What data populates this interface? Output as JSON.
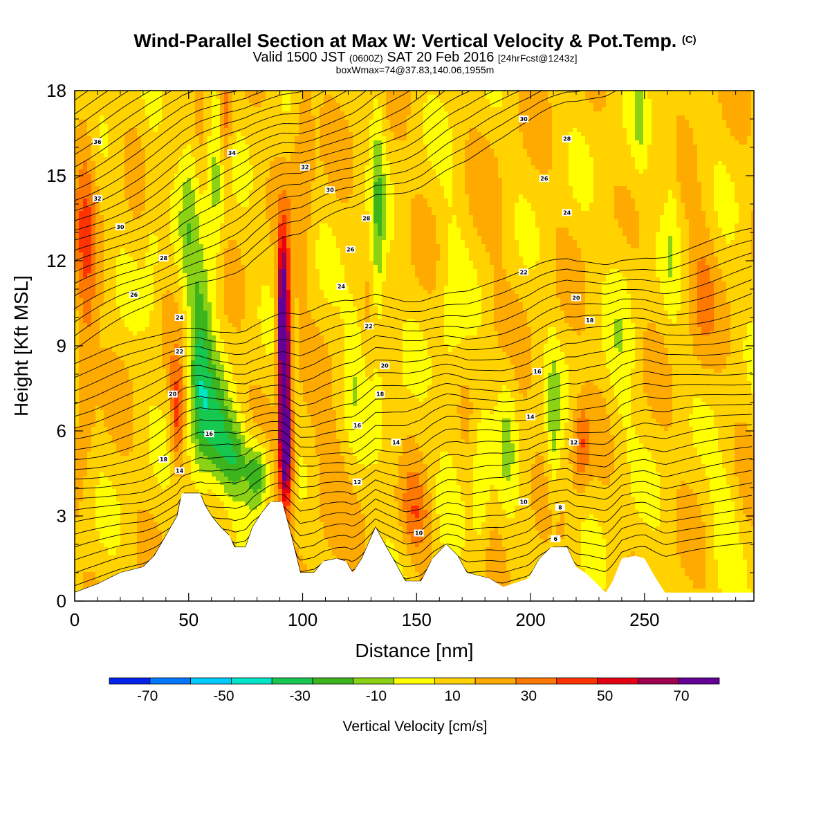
{
  "header": {
    "title": "Wind-Parallel Section at Max W: Vertical Velocity & Pot.Temp.",
    "copyright": "(C)",
    "valid_prefix": "Valid 1500 JST",
    "valid_utc": "(0600Z)",
    "valid_date": "SAT 20 Feb 2016",
    "forecast": "[24hrFcst@1243z]",
    "boxwmax": "boxWmax=74@37.83,140.06,1955m"
  },
  "chart_data": {
    "type": "heatmap",
    "xlabel": "Distance [nm]",
    "ylabel": "Height [Kft MSL]",
    "xlim": [
      0,
      298
    ],
    "ylim": [
      0,
      18
    ],
    "x_ticks": [
      "0",
      "50",
      "100",
      "150",
      "200",
      "250"
    ],
    "y_ticks": [
      "0",
      "3",
      "6",
      "9",
      "12",
      "15",
      "18"
    ],
    "colorbar": {
      "title": "Vertical Velocity [cm/s]",
      "bounds": [
        -80,
        -60,
        -40,
        -20,
        0,
        20,
        40,
        60,
        80
      ],
      "labels": [
        "-70",
        "-50",
        "-30",
        "-10",
        "10",
        "30",
        "50",
        "70"
      ],
      "colors": [
        "#0022ee",
        "#0077ff",
        "#00ccff",
        "#00e6c8",
        "#16c850",
        "#3cb41e",
        "#8cd214",
        "#ffff00",
        "#ffd200",
        "#ffaa00",
        "#ff7800",
        "#ff3200",
        "#e60014",
        "#a00050",
        "#640096"
      ]
    },
    "terrain_kft": [
      [
        0,
        0.3
      ],
      [
        10,
        0.6
      ],
      [
        20,
        1.0
      ],
      [
        30,
        1.2
      ],
      [
        35,
        1.6
      ],
      [
        40,
        2.3
      ],
      [
        45,
        3.0
      ],
      [
        47,
        3.8
      ],
      [
        55,
        3.8
      ],
      [
        57,
        3.4
      ],
      [
        60,
        3.0
      ],
      [
        64,
        2.6
      ],
      [
        68,
        2.3
      ],
      [
        70,
        1.9
      ],
      [
        75,
        1.9
      ],
      [
        78,
        2.6
      ],
      [
        82,
        3.1
      ],
      [
        86,
        3.5
      ],
      [
        91,
        3.5
      ],
      [
        95,
        2.3
      ],
      [
        99,
        1.0
      ],
      [
        105,
        1.0
      ],
      [
        109,
        1.4
      ],
      [
        115,
        1.5
      ],
      [
        119,
        1.4
      ],
      [
        122,
        1.0
      ],
      [
        126,
        1.5
      ],
      [
        132,
        2.6
      ],
      [
        136,
        2.0
      ],
      [
        141,
        1.3
      ],
      [
        145,
        0.7
      ],
      [
        152,
        0.7
      ],
      [
        157,
        1.5
      ],
      [
        163,
        2.0
      ],
      [
        168,
        1.6
      ],
      [
        172,
        1.0
      ],
      [
        182,
        0.8
      ],
      [
        188,
        0.5
      ],
      [
        199,
        0.8
      ],
      [
        204,
        1.5
      ],
      [
        209,
        1.9
      ],
      [
        216,
        1.9
      ],
      [
        220,
        1.2
      ],
      [
        224,
        1.0
      ],
      [
        228,
        0.7
      ],
      [
        233,
        0.3
      ],
      [
        236,
        0.7
      ],
      [
        240,
        1.5
      ],
      [
        246,
        1.6
      ],
      [
        250,
        1.5
      ],
      [
        255,
        0.8
      ],
      [
        259,
        0.3
      ],
      [
        298,
        0.3
      ]
    ],
    "w_features": [
      [
        92,
        8.0,
        2.5,
        3.5,
        75
      ],
      [
        91,
        10.5,
        2.5,
        2.5,
        40
      ],
      [
        93,
        5.0,
        3.0,
        1.8,
        40
      ],
      [
        55,
        8.0,
        5.0,
        4.0,
        -38
      ],
      [
        62,
        6.0,
        6.0,
        2.0,
        -30
      ],
      [
        70,
        5.0,
        6.0,
        1.5,
        -30
      ],
      [
        80,
        4.5,
        5.0,
        1.2,
        -35
      ],
      [
        62,
        15.0,
        4.0,
        4.0,
        -20
      ],
      [
        50,
        14.0,
        4.0,
        4.0,
        -15
      ],
      [
        34,
        13.0,
        4.0,
        4.0,
        -10
      ],
      [
        133,
        13.0,
        3.0,
        5.0,
        -22
      ],
      [
        123,
        9.0,
        5.0,
        3.0,
        -12
      ],
      [
        140,
        6.0,
        5.0,
        2.0,
        -10
      ],
      [
        165,
        9.0,
        6.0,
        5.0,
        -10
      ],
      [
        178,
        4.0,
        4.0,
        3.0,
        -15
      ],
      [
        190,
        6.0,
        4.0,
        3.0,
        -12
      ],
      [
        210,
        6.0,
        3.0,
        3.0,
        -18
      ],
      [
        240,
        9.0,
        6.0,
        6.0,
        -8
      ],
      [
        248,
        17.0,
        3.0,
        2.0,
        -12
      ],
      [
        262,
        14.0,
        3.0,
        4.0,
        -10
      ],
      [
        285,
        3.0,
        6.0,
        2.0,
        -12
      ],
      [
        5,
        14.0,
        5.0,
        4.0,
        20
      ],
      [
        5,
        8.0,
        4.0,
        3.0,
        15
      ],
      [
        45,
        6.5,
        3.0,
        2.0,
        28
      ],
      [
        66,
        17.0,
        3.0,
        2.0,
        25
      ],
      [
        100,
        16.0,
        5.0,
        4.0,
        15
      ],
      [
        150,
        3.0,
        6.0,
        1.5,
        20
      ],
      [
        222,
        5.5,
        4.0,
        1.5,
        25
      ],
      [
        275,
        11.0,
        6.0,
        3.0,
        12
      ],
      [
        185,
        12.0,
        10.0,
        5.0,
        3
      ],
      [
        110,
        4.0,
        8.0,
        2.0,
        12
      ]
    ],
    "theta_spacing_kft": 0.42,
    "contour_labels": [
      {
        "text": "36",
        "x": 10,
        "y": 16.2
      },
      {
        "text": "32",
        "x": 10,
        "y": 14.2
      },
      {
        "text": "30",
        "x": 20,
        "y": 13.2
      },
      {
        "text": "28",
        "x": 39,
        "y": 12.1
      },
      {
        "text": "26",
        "x": 26,
        "y": 10.8
      },
      {
        "text": "24",
        "x": 46,
        "y": 10.0
      },
      {
        "text": "22",
        "x": 46,
        "y": 8.8
      },
      {
        "text": "20",
        "x": 43,
        "y": 7.3
      },
      {
        "text": "18",
        "x": 39,
        "y": 5.0
      },
      {
        "text": "14",
        "x": 46,
        "y": 4.6
      },
      {
        "text": "16",
        "x": 59,
        "y": 5.9
      },
      {
        "text": "34",
        "x": 69,
        "y": 15.8
      },
      {
        "text": "32",
        "x": 101,
        "y": 15.3
      },
      {
        "text": "30",
        "x": 112,
        "y": 14.5
      },
      {
        "text": "28",
        "x": 128,
        "y": 13.5
      },
      {
        "text": "26",
        "x": 121,
        "y": 12.4
      },
      {
        "text": "24",
        "x": 117,
        "y": 11.1
      },
      {
        "text": "22",
        "x": 129,
        "y": 9.7
      },
      {
        "text": "20",
        "x": 136,
        "y": 8.3
      },
      {
        "text": "18",
        "x": 134,
        "y": 7.3
      },
      {
        "text": "16",
        "x": 124,
        "y": 6.2
      },
      {
        "text": "14",
        "x": 141,
        "y": 5.6
      },
      {
        "text": "12",
        "x": 124,
        "y": 4.2
      },
      {
        "text": "10",
        "x": 151,
        "y": 2.4
      },
      {
        "text": "30",
        "x": 197,
        "y": 17.0
      },
      {
        "text": "28",
        "x": 216,
        "y": 16.3
      },
      {
        "text": "26",
        "x": 206,
        "y": 14.9
      },
      {
        "text": "24",
        "x": 216,
        "y": 13.7
      },
      {
        "text": "22",
        "x": 197,
        "y": 11.6
      },
      {
        "text": "20",
        "x": 220,
        "y": 10.7
      },
      {
        "text": "18",
        "x": 226,
        "y": 9.9
      },
      {
        "text": "16",
        "x": 203,
        "y": 8.1
      },
      {
        "text": "14",
        "x": 200,
        "y": 6.5
      },
      {
        "text": "12",
        "x": 219,
        "y": 5.6
      },
      {
        "text": "10",
        "x": 197,
        "y": 3.5
      },
      {
        "text": "8",
        "x": 213,
        "y": 3.3
      },
      {
        "text": "6",
        "x": 211,
        "y": 2.2
      }
    ]
  }
}
